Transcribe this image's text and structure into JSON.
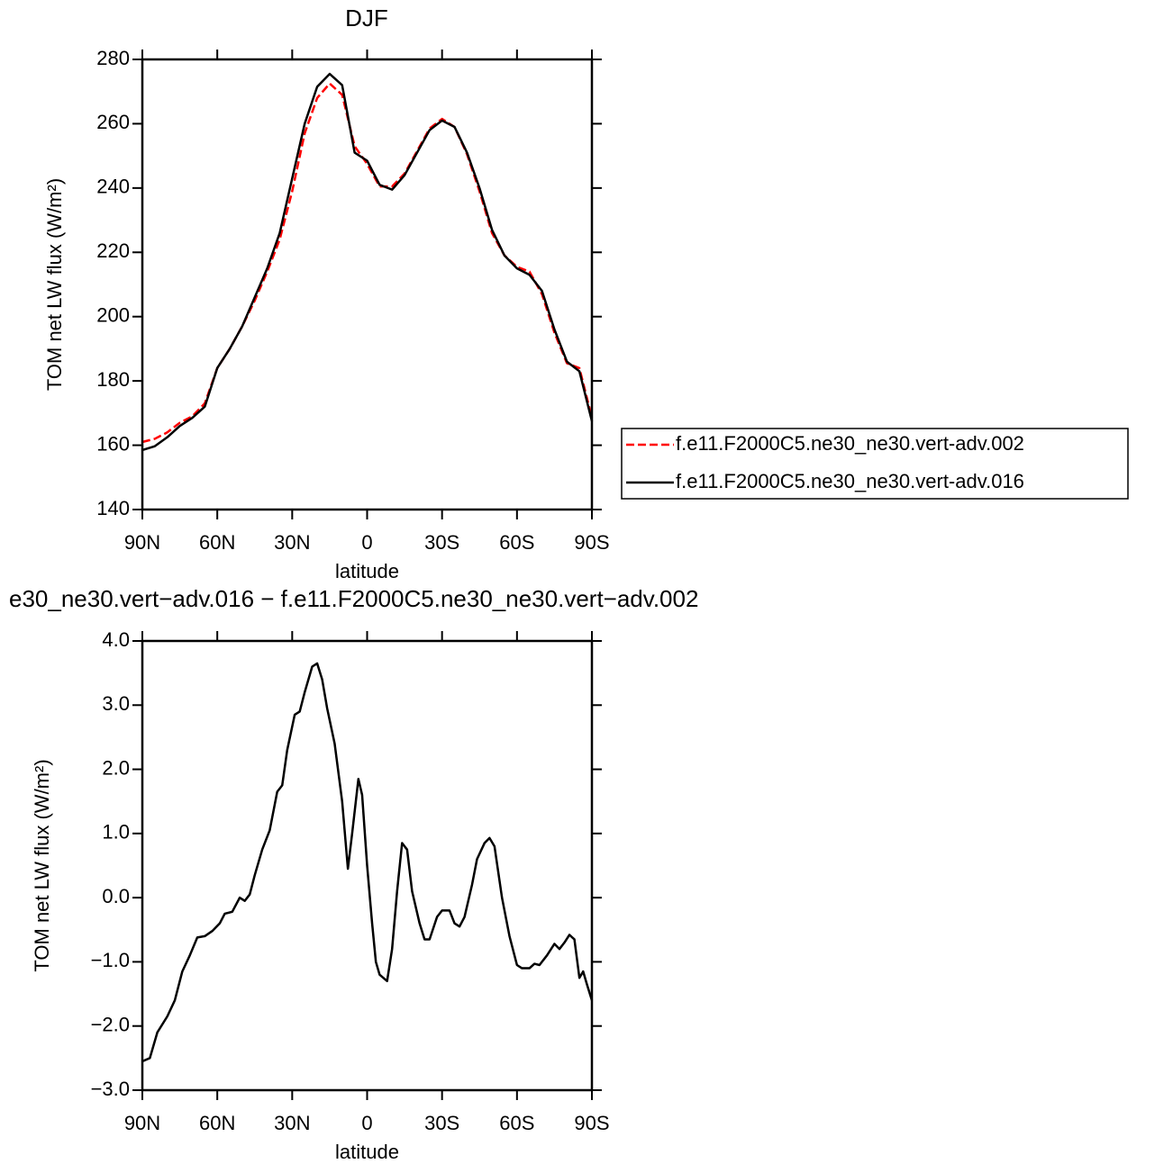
{
  "chart_data": [
    {
      "type": "line",
      "title": "DJF",
      "x_label": "latitude",
      "y_label": "TOM net LW flux (W/m²)",
      "xlim": [
        90,
        -90
      ],
      "ylim": [
        140,
        280
      ],
      "xticks": [
        {
          "value": 90,
          "label": "90N"
        },
        {
          "value": 60,
          "label": "60N"
        },
        {
          "value": 30,
          "label": "30N"
        },
        0,
        {
          "value": -30,
          "label": "30S"
        },
        {
          "value": -60,
          "label": "60S"
        },
        {
          "value": -90,
          "label": "90S"
        }
      ],
      "yticks": [
        140,
        160,
        180,
        200,
        220,
        240,
        260,
        280
      ],
      "legend": "right",
      "x": [
        90,
        85,
        80,
        75,
        70,
        65,
        60,
        55,
        50,
        45,
        40,
        35,
        30,
        25,
        20,
        15,
        10,
        5,
        0,
        -5,
        -10,
        -15,
        -20,
        -25,
        -30,
        -35,
        -40,
        -45,
        -50,
        -55,
        -60,
        -65,
        -70,
        -75,
        -80,
        -85,
        -90
      ],
      "series": [
        {
          "name": "f.e11.F2000C5.ne30_ne30.vert-adv.002",
          "color": "#ff0000",
          "dashed": true,
          "values": [
            161,
            162,
            164,
            167,
            169,
            173,
            184,
            190,
            197,
            205,
            214,
            224,
            239,
            257,
            268,
            272.5,
            269,
            253,
            247.5,
            240.5,
            240.5,
            244.5,
            251.5,
            258.5,
            261.5,
            259,
            250.5,
            239,
            226,
            219,
            215.5,
            214,
            207,
            195,
            185.5,
            184,
            168.5
          ]
        },
        {
          "name": "f.e11.F2000C5.ne30_ne30.vert-adv.016",
          "color": "#000000",
          "dashed": false,
          "values": [
            158.5,
            159.7,
            162.5,
            166,
            168.5,
            172,
            184,
            190,
            197,
            206,
            215,
            226,
            243,
            260,
            271.5,
            275.5,
            272,
            251,
            248.5,
            241,
            239.5,
            244,
            251,
            258,
            261,
            259,
            251,
            240,
            227,
            219,
            215,
            213,
            208,
            196,
            186,
            183,
            167.5
          ]
        }
      ]
    },
    {
      "type": "line",
      "title": "e30_ne30.vert−adv.016 − f.e11.F2000C5.ne30_ne30.vert−adv.002",
      "x_label": "latitude",
      "y_label": "TOM net LW flux (W/m²)",
      "xlim": [
        90,
        -90
      ],
      "ylim": [
        -3,
        4
      ],
      "xticks": [
        {
          "value": 90,
          "label": "90N"
        },
        {
          "value": 60,
          "label": "60N"
        },
        {
          "value": 30,
          "label": "30N"
        },
        0,
        {
          "value": -30,
          "label": "30S"
        },
        {
          "value": -60,
          "label": "60S"
        },
        {
          "value": -90,
          "label": "90S"
        }
      ],
      "yticks": [
        {
          "value": -3,
          "label": "−3.0"
        },
        {
          "value": -2,
          "label": "−2.0"
        },
        {
          "value": -1,
          "label": "−1.0"
        },
        {
          "value": 0,
          "label": "0.0"
        },
        {
          "value": 1,
          "label": "1.0"
        },
        {
          "value": 2,
          "label": "2.0"
        },
        {
          "value": 3,
          "label": "3.0"
        },
        {
          "value": 4,
          "label": "4.0"
        }
      ],
      "x": [
        90,
        87,
        84,
        80,
        77,
        74,
        71,
        68,
        65,
        62,
        59,
        57,
        54,
        51,
        49,
        47,
        45,
        42,
        39,
        36,
        34,
        32,
        29,
        27,
        25,
        22,
        20,
        18,
        16,
        13,
        10,
        7.7,
        6,
        3.5,
        2,
        0,
        -2,
        -3.5,
        -5,
        -8,
        -10,
        -12,
        -14,
        -16,
        -18,
        -21,
        -23,
        -25,
        -28,
        -30,
        -33,
        -35,
        -37,
        -39,
        -42,
        -44,
        -47,
        -49,
        -51,
        -54,
        -57,
        -60,
        -62,
        -65,
        -67,
        -69,
        -72,
        -75,
        -77,
        -79,
        -81,
        -83,
        -85,
        -86.5,
        -88,
        -90
      ],
      "series": [
        {
          "color": "#000000",
          "dashed": false,
          "values": [
            -2.55,
            -2.5,
            -2.1,
            -1.85,
            -1.6,
            -1.15,
            -0.9,
            -0.62,
            -0.6,
            -0.52,
            -0.4,
            -0.25,
            -0.22,
            0.0,
            -0.05,
            0.05,
            0.35,
            0.75,
            1.05,
            1.65,
            1.75,
            2.3,
            2.85,
            2.9,
            3.2,
            3.6,
            3.65,
            3.4,
            2.95,
            2.4,
            1.5,
            0.45,
            1.0,
            1.85,
            1.6,
            0.5,
            -0.4,
            -1.0,
            -1.2,
            -1.3,
            -0.8,
            0.1,
            0.85,
            0.75,
            0.1,
            -0.4,
            -0.65,
            -0.65,
            -0.3,
            -0.2,
            -0.2,
            -0.4,
            -0.45,
            -0.3,
            0.2,
            0.6,
            0.85,
            0.93,
            0.8,
            0.0,
            -0.6,
            -1.05,
            -1.1,
            -1.1,
            -1.03,
            -1.05,
            -0.9,
            -0.72,
            -0.8,
            -0.7,
            -0.58,
            -0.65,
            -1.25,
            -1.15,
            -1.35,
            -1.6
          ]
        }
      ]
    }
  ]
}
